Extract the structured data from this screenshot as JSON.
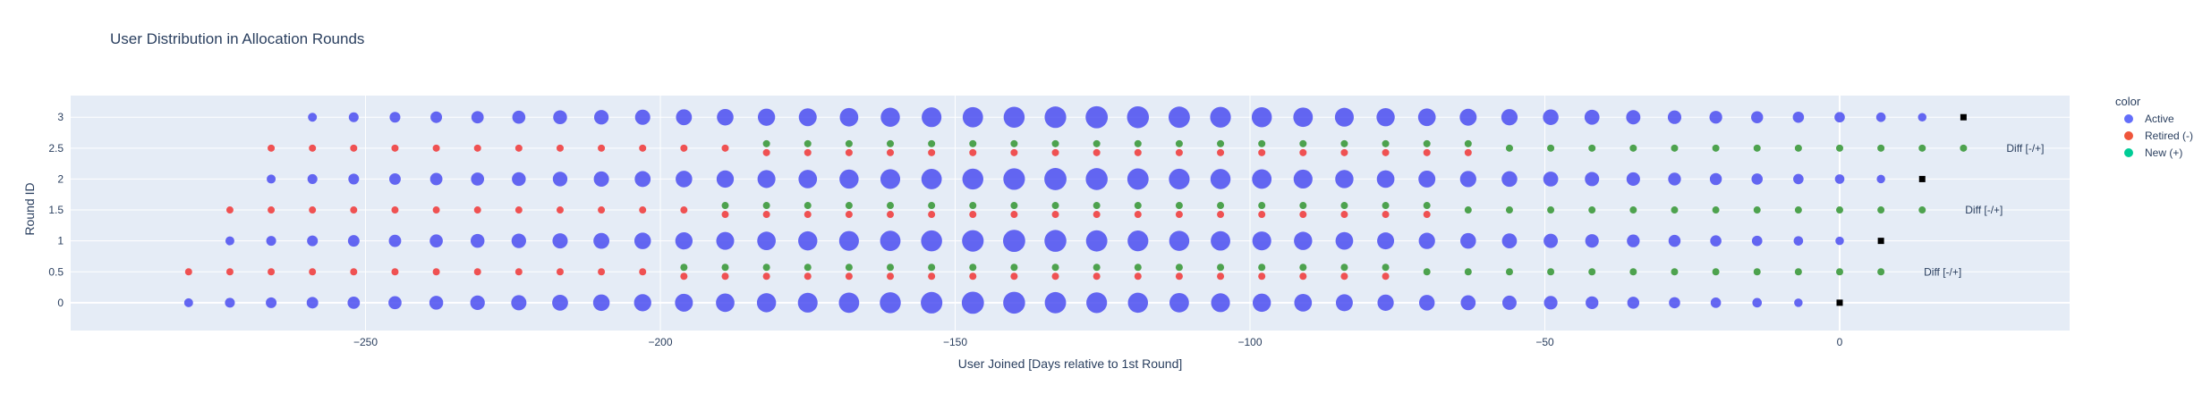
{
  "chart_data": {
    "type": "scatter",
    "title": "User Distribution in Allocation Rounds",
    "xlabel": "User Joined [Days relative to 1st Round]",
    "ylabel": "Round ID",
    "xlim": [
      -300,
      39
    ],
    "ylim": [
      -0.45,
      3.35
    ],
    "x_ticks": [
      -250,
      -200,
      -150,
      -100,
      -50,
      0
    ],
    "y_ticks": [
      0,
      0.5,
      1,
      1.5,
      2,
      2.5,
      3
    ],
    "grid": true,
    "background": "#e5ecf6",
    "legend": {
      "title": "color",
      "placement": "right",
      "entries": [
        {
          "name": "Active",
          "color": "#636efa"
        },
        {
          "name": "Retired (-)",
          "color": "#ef553b"
        },
        {
          "name": "New (+)",
          "color": "#00cc96"
        }
      ]
    },
    "colors": {
      "active": "#4b4df0",
      "retired": "#ef4040",
      "new": "#3c9a3c",
      "marker_end": "#000000"
    },
    "rounds": [
      {
        "round": 0,
        "start_day": -280,
        "end_day": 0,
        "peak_day": -145
      },
      {
        "round": 1,
        "start_day": -273,
        "end_day": 7,
        "peak_day": -138
      },
      {
        "round": 2,
        "start_day": -266,
        "end_day": 14,
        "peak_day": -131
      },
      {
        "round": 3,
        "start_day": -259,
        "end_day": 21,
        "peak_day": -124
      }
    ],
    "diffs": [
      {
        "y": 0.5,
        "retired_from": -280,
        "retired_to": -77,
        "new_from": -196,
        "new_to": 7,
        "label": "Diff [-/+]"
      },
      {
        "y": 1.5,
        "retired_from": -273,
        "retired_to": -70,
        "new_from": -189,
        "new_to": 14,
        "label": "Diff [-/+]"
      },
      {
        "y": 2.5,
        "retired_from": -266,
        "retired_to": -63,
        "new_from": -182,
        "new_to": 21,
        "label": "Diff [-/+]"
      }
    ],
    "day_step": 7
  }
}
